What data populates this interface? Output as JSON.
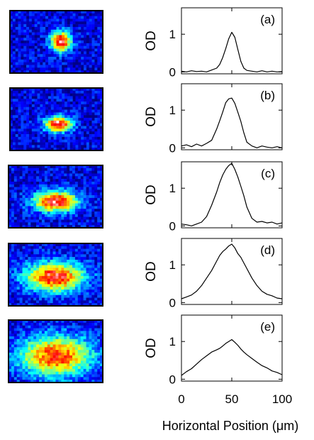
{
  "chart_data": {
    "type": "line",
    "xlabel": "Horizontal Position (μm)",
    "ylabel": "OD",
    "xlim": [
      0,
      100
    ],
    "xticks": [
      0,
      50,
      100
    ],
    "ylim": [
      -0.05,
      1.7
    ],
    "yticks": [
      0,
      1
    ],
    "grid": false,
    "colormap": [
      "#00007f",
      "#0000ff",
      "#0080ff",
      "#00ffff",
      "#80ff80",
      "#ffff00",
      "#ff8000",
      "#ff0000",
      "#ffffff"
    ],
    "panels": [
      {
        "label": "(a)",
        "x": [
          0,
          5,
          10,
          15,
          20,
          25,
          30,
          35,
          38,
          41,
          44,
          47,
          50,
          53,
          56,
          59,
          62,
          65,
          70,
          75,
          80,
          85,
          90,
          95,
          100
        ],
        "y": [
          0.02,
          0.0,
          0.03,
          0.01,
          0.02,
          0.0,
          0.05,
          0.1,
          0.2,
          0.38,
          0.62,
          0.88,
          1.05,
          0.92,
          0.6,
          0.28,
          0.1,
          0.04,
          0.02,
          0.0,
          0.03,
          0.0,
          0.02,
          0.0,
          0.01
        ],
        "image_spot": {
          "cx": 0.55,
          "cy": 0.5,
          "rx": 0.11,
          "ry": 0.16,
          "peak": 1.0
        }
      },
      {
        "label": "(b)",
        "x": [
          0,
          5,
          10,
          15,
          20,
          25,
          30,
          35,
          38,
          41,
          44,
          47,
          50,
          53,
          56,
          59,
          62,
          65,
          70,
          75,
          80,
          85,
          90,
          95,
          100
        ],
        "y": [
          0.05,
          0.08,
          0.03,
          0.1,
          0.05,
          0.12,
          0.2,
          0.5,
          0.72,
          0.95,
          1.2,
          1.3,
          1.32,
          1.18,
          0.95,
          0.7,
          0.4,
          0.15,
          0.05,
          0.0,
          0.05,
          0.02,
          0.0,
          0.03,
          0.0
        ],
        "image_spot": {
          "cx": 0.52,
          "cy": 0.58,
          "rx": 0.15,
          "ry": 0.12,
          "peak": 1.0
        }
      },
      {
        "label": "(c)",
        "x": [
          0,
          5,
          10,
          15,
          20,
          25,
          30,
          35,
          38,
          41,
          44,
          47,
          50,
          53,
          56,
          59,
          62,
          65,
          70,
          75,
          80,
          85,
          90,
          95,
          100
        ],
        "y": [
          0.05,
          0.03,
          0.0,
          0.05,
          0.1,
          0.25,
          0.55,
          0.9,
          1.15,
          1.35,
          1.5,
          1.6,
          1.66,
          1.5,
          1.3,
          1.05,
          0.8,
          0.5,
          0.2,
          0.1,
          0.12,
          0.08,
          0.1,
          0.05,
          0.08
        ],
        "image_spot": {
          "cx": 0.5,
          "cy": 0.58,
          "rx": 0.24,
          "ry": 0.17,
          "peak": 0.95
        }
      },
      {
        "label": "(d)",
        "x": [
          0,
          5,
          10,
          15,
          20,
          25,
          30,
          35,
          38,
          41,
          44,
          47,
          50,
          53,
          56,
          59,
          62,
          65,
          70,
          75,
          80,
          85,
          90,
          95,
          100
        ],
        "y": [
          0.1,
          0.15,
          0.2,
          0.3,
          0.45,
          0.65,
          0.85,
          1.1,
          1.25,
          1.35,
          1.42,
          1.5,
          1.55,
          1.45,
          1.3,
          1.2,
          1.05,
          0.9,
          0.65,
          0.45,
          0.3,
          0.22,
          0.18,
          0.12,
          0.1
        ],
        "image_spot": {
          "cx": 0.49,
          "cy": 0.54,
          "rx": 0.32,
          "ry": 0.24,
          "peak": 0.9
        }
      },
      {
        "label": "(e)",
        "x": [
          0,
          5,
          10,
          15,
          20,
          25,
          30,
          35,
          38,
          41,
          44,
          47,
          50,
          53,
          56,
          59,
          62,
          65,
          70,
          75,
          80,
          85,
          90,
          95,
          100
        ],
        "y": [
          0.1,
          0.2,
          0.28,
          0.4,
          0.52,
          0.62,
          0.72,
          0.78,
          0.82,
          0.88,
          0.95,
          1.0,
          1.05,
          0.98,
          0.9,
          0.8,
          0.72,
          0.65,
          0.55,
          0.45,
          0.36,
          0.3,
          0.22,
          0.18,
          0.12
        ],
        "image_spot": {
          "cx": 0.5,
          "cy": 0.58,
          "rx": 0.4,
          "ry": 0.33,
          "peak": 0.82
        }
      }
    ]
  }
}
